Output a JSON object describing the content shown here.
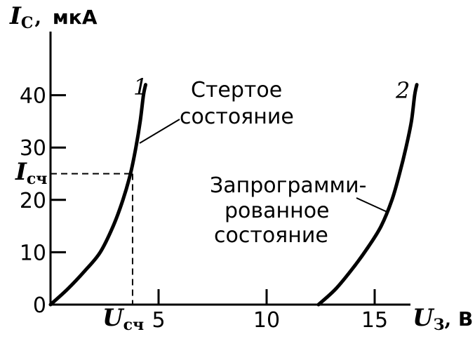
{
  "chart_data": {
    "type": "line",
    "y_axis": {
      "symbol": "I",
      "subscript": "C",
      "unit": "мкА",
      "ylim": [
        0,
        45
      ],
      "ticks": [
        0,
        10,
        20,
        30,
        40
      ]
    },
    "x_axis": {
      "symbol": "U",
      "subscript": "З",
      "unit": "В",
      "xlim": [
        0,
        18
      ],
      "ticks": [
        5,
        10,
        15
      ]
    },
    "grid": false,
    "series": [
      {
        "name": "1",
        "points": [
          [
            0,
            0
          ],
          [
            0.8,
            3
          ],
          [
            1.6,
            6.5
          ],
          [
            2.3,
            10
          ],
          [
            2.9,
            15
          ],
          [
            3.35,
            20
          ],
          [
            3.7,
            25
          ],
          [
            3.95,
            30
          ],
          [
            4.15,
            35
          ],
          [
            4.3,
            40
          ],
          [
            4.4,
            42
          ]
        ]
      },
      {
        "name": "2",
        "points": [
          [
            12.4,
            0
          ],
          [
            13.2,
            3
          ],
          [
            14,
            7
          ],
          [
            14.7,
            11
          ],
          [
            15.3,
            15
          ],
          [
            15.8,
            20
          ],
          [
            16.15,
            25
          ],
          [
            16.45,
            30
          ],
          [
            16.7,
            35
          ],
          [
            16.85,
            40
          ],
          [
            16.95,
            42
          ]
        ]
      }
    ],
    "annotations": {
      "erased": [
        "Стертое",
        "состояние"
      ],
      "programmed": [
        "Запрограмми-",
        "рованное",
        "состояние"
      ]
    },
    "read_marker": {
      "x": 3.7,
      "y": 25,
      "x_symbol": "U",
      "x_sub": "сч",
      "y_symbol": "I",
      "y_sub": "сч"
    }
  }
}
